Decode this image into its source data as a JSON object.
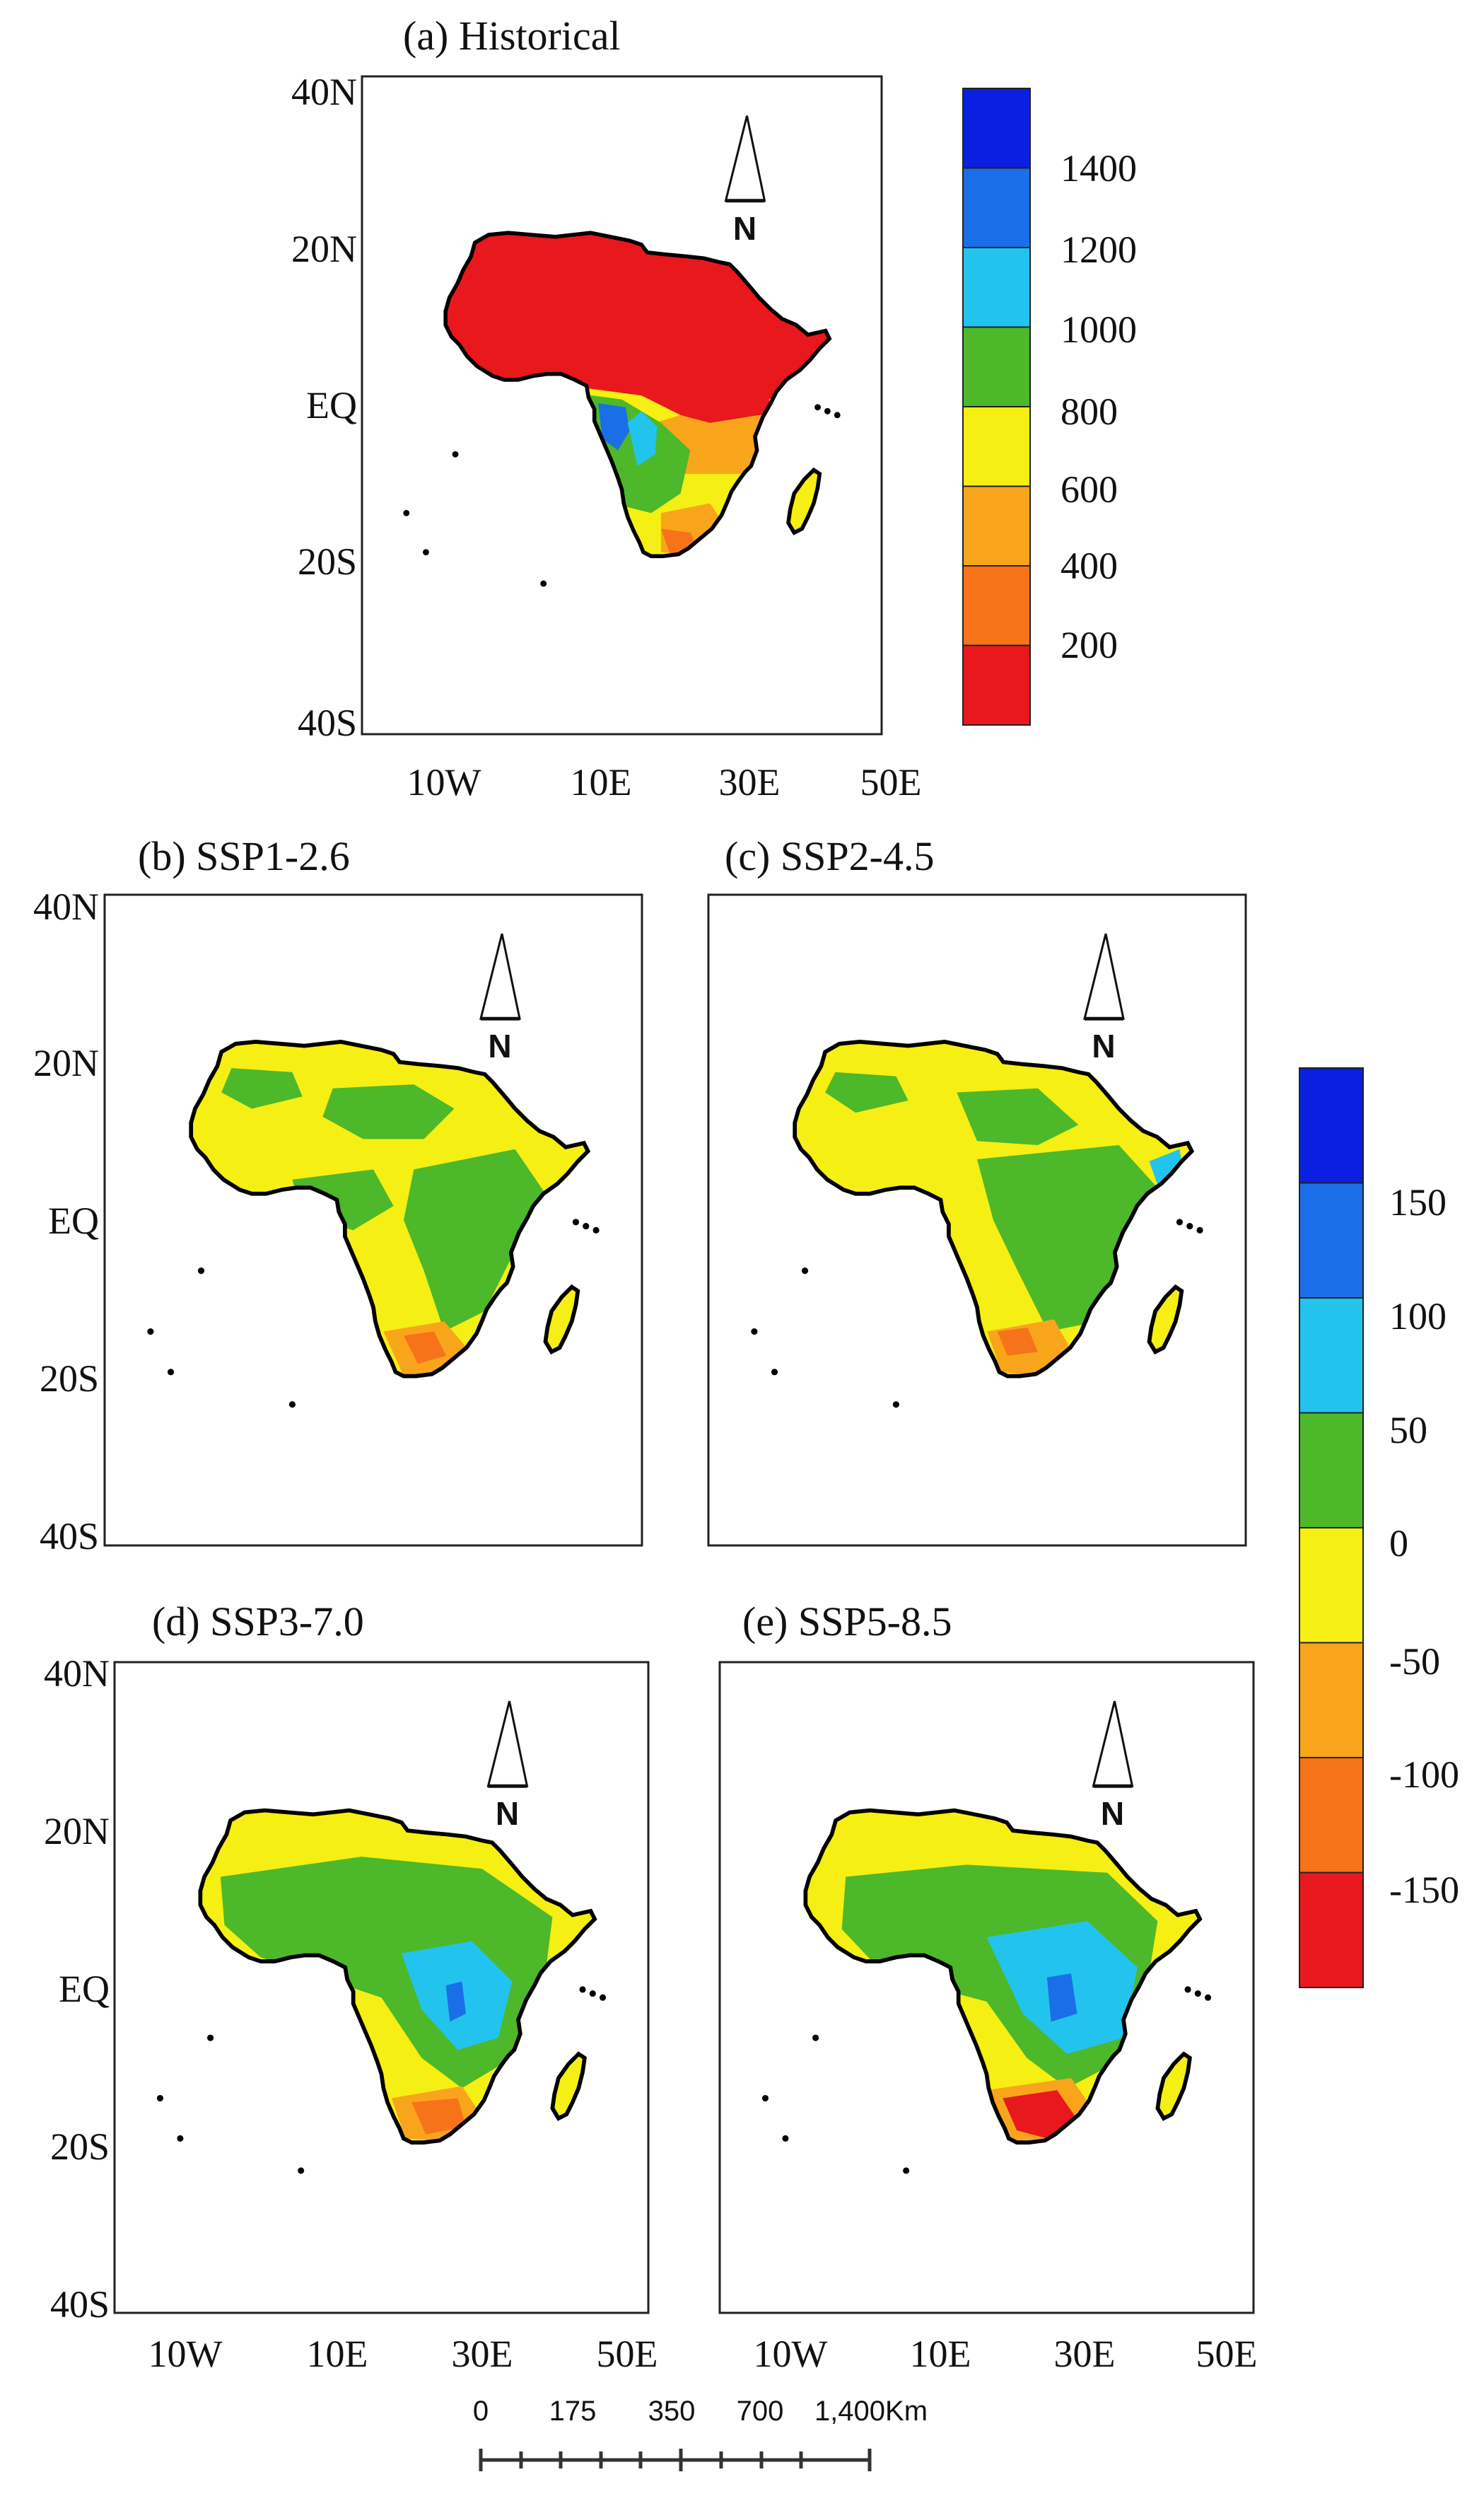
{
  "figure": {
    "panels": [
      {
        "id": "a",
        "title": "(a) Historical",
        "palette": "historical"
      },
      {
        "id": "b",
        "title": "(b) SSP1-2.6",
        "palette": "change"
      },
      {
        "id": "c",
        "title": "(c) SSP2-4.5",
        "palette": "change"
      },
      {
        "id": "d",
        "title": "(d) SSP3-7.0",
        "palette": "change"
      },
      {
        "id": "e",
        "title": "(e) SSP5-8.5",
        "palette": "change"
      }
    ],
    "lat_labels": [
      "40N",
      "20N",
      "EQ",
      "20S",
      "40S"
    ],
    "lon_labels": [
      "10W",
      "10E",
      "30E",
      "50E"
    ],
    "north_arrow_label": "N",
    "scale_bar": {
      "labels": [
        "0",
        "175",
        "350",
        "700",
        "1,400Km"
      ]
    }
  },
  "colorbars": {
    "historical": {
      "labels": [
        "1400",
        "1200",
        "1000",
        "800",
        "600",
        "400",
        "200"
      ],
      "colors": [
        "#0a1fe0",
        "#1a6fe8",
        "#22c4ee",
        "#4db82a",
        "#f5ef13",
        "#f9a51b",
        "#f7731a",
        "#e8181d"
      ]
    },
    "change": {
      "labels": [
        "150",
        "100",
        "50",
        "0",
        "-50",
        "-100",
        "-150"
      ],
      "colors": [
        "#0a1fe0",
        "#1a6fe8",
        "#22c4ee",
        "#4db82a",
        "#f5ef13",
        "#f9a51b",
        "#f7731a",
        "#e8181d"
      ]
    }
  }
}
